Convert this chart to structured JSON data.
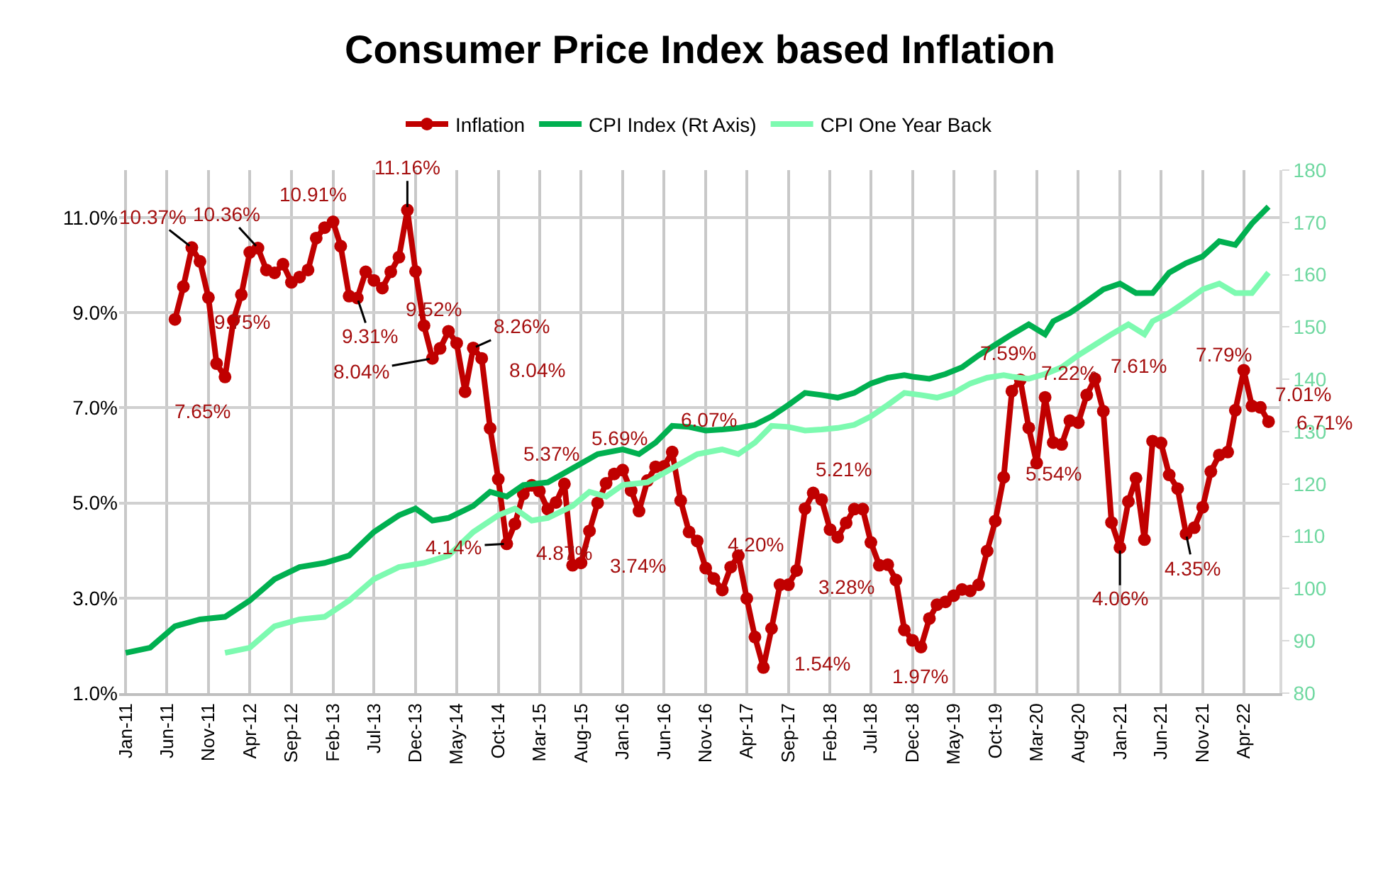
{
  "chart_data": {
    "type": "line",
    "title": "Consumer Price Index based Inflation",
    "xlim": [
      "2010-12-08",
      "2022-08-10"
    ],
    "xticks": [
      {
        "value": "2011-01",
        "label": "Jan-11"
      },
      {
        "value": "2011-06",
        "label": "Jun-11"
      },
      {
        "value": "2011-11",
        "label": "Nov-11"
      },
      {
        "value": "2012-04",
        "label": "Apr-12"
      },
      {
        "value": "2012-09",
        "label": "Sep-12"
      },
      {
        "value": "2013-02",
        "label": "Feb-13"
      },
      {
        "value": "2013-07",
        "label": "Jul-13"
      },
      {
        "value": "2013-12",
        "label": "Dec-13"
      },
      {
        "value": "2014-05",
        "label": "May-14"
      },
      {
        "value": "2014-10",
        "label": "Oct-14"
      },
      {
        "value": "2015-03",
        "label": "Mar-15"
      },
      {
        "value": "2015-08",
        "label": "Aug-15"
      },
      {
        "value": "2016-01",
        "label": "Jan-16"
      },
      {
        "value": "2016-06",
        "label": "Jun-16"
      },
      {
        "value": "2016-11",
        "label": "Nov-16"
      },
      {
        "value": "2017-04",
        "label": "Apr-17"
      },
      {
        "value": "2017-09",
        "label": "Sep-17"
      },
      {
        "value": "2018-02",
        "label": "Feb-18"
      },
      {
        "value": "2018-07",
        "label": "Jul-18"
      },
      {
        "value": "2018-12",
        "label": "Dec-18"
      },
      {
        "value": "2019-05",
        "label": "May-19"
      },
      {
        "value": "2019-10",
        "label": "Oct-19"
      },
      {
        "value": "2020-03",
        "label": "Mar-20"
      },
      {
        "value": "2020-08",
        "label": "Aug-20"
      },
      {
        "value": "2021-01",
        "label": "Jan-21"
      },
      {
        "value": "2021-06",
        "label": "Jun-21"
      },
      {
        "value": "2021-11",
        "label": "Nov-21"
      },
      {
        "value": "2022-04",
        "label": "Apr-22"
      }
    ],
    "ylim": [
      1,
      12
    ],
    "yticks": [
      {
        "value": 1,
        "label": "1.0%"
      },
      {
        "value": 3,
        "label": "3.0%"
      },
      {
        "value": 5,
        "label": "5.0%"
      },
      {
        "value": 7,
        "label": "7.0%"
      },
      {
        "value": 9,
        "label": "9.0%"
      },
      {
        "value": 11,
        "label": "11.0%"
      }
    ],
    "y2lim": [
      80,
      180
    ],
    "y2ticks": [
      80,
      90,
      100,
      110,
      120,
      130,
      140,
      150,
      160,
      170,
      180
    ],
    "grid": true,
    "legend": "top",
    "series": [
      {
        "name": "Inflation",
        "color": "#c00000",
        "marker": "circle",
        "x": [
          "2011-07",
          "2011-08",
          "2011-09",
          "2011-10",
          "2011-11",
          "2011-12",
          "2012-01",
          "2012-02",
          "2012-03",
          "2012-04",
          "2012-05",
          "2012-06",
          "2012-07",
          "2012-08",
          "2012-09",
          "2012-10",
          "2012-11",
          "2012-12",
          "2013-01",
          "2013-02",
          "2013-03",
          "2013-04",
          "2013-05",
          "2013-06",
          "2013-07",
          "2013-08",
          "2013-09",
          "2013-10",
          "2013-11",
          "2013-12",
          "2014-01",
          "2014-02",
          "2014-03",
          "2014-04",
          "2014-05",
          "2014-06",
          "2014-07",
          "2014-08",
          "2014-09",
          "2014-10",
          "2014-11",
          "2014-12",
          "2015-01",
          "2015-02",
          "2015-03",
          "2015-04",
          "2015-05",
          "2015-06",
          "2015-07",
          "2015-08",
          "2015-09",
          "2015-10",
          "2015-11",
          "2015-12",
          "2016-01",
          "2016-02",
          "2016-03",
          "2016-04",
          "2016-05",
          "2016-06",
          "2016-07",
          "2016-08",
          "2016-09",
          "2016-10",
          "2016-11",
          "2016-12",
          "2017-01",
          "2017-02",
          "2017-03",
          "2017-04",
          "2017-05",
          "2017-06",
          "2017-07",
          "2017-08",
          "2017-09",
          "2017-10",
          "2017-11",
          "2017-12",
          "2018-01",
          "2018-02",
          "2018-03",
          "2018-04",
          "2018-05",
          "2018-06",
          "2018-07",
          "2018-08",
          "2018-09",
          "2018-10",
          "2018-11",
          "2018-12",
          "2019-01",
          "2019-02",
          "2019-03",
          "2019-04",
          "2019-05",
          "2019-06",
          "2019-07",
          "2019-08",
          "2019-09",
          "2019-10",
          "2019-11",
          "2019-12",
          "2020-01",
          "2020-02",
          "2020-03",
          "2020-04",
          "2020-05",
          "2020-06",
          "2020-07",
          "2020-08",
          "2020-09",
          "2020-10",
          "2020-11",
          "2020-12",
          "2021-01",
          "2021-02",
          "2021-03",
          "2021-04",
          "2021-05",
          "2021-06",
          "2021-07",
          "2021-08",
          "2021-09",
          "2021-10",
          "2021-11",
          "2021-12",
          "2022-01",
          "2022-02",
          "2022-03",
          "2022-04",
          "2022-05",
          "2022-06",
          "2022-07"
        ],
        "values": [
          8.86,
          9.55,
          10.37,
          10.08,
          9.32,
          7.93,
          7.65,
          8.84,
          9.38,
          10.27,
          10.36,
          9.9,
          9.84,
          10.02,
          9.64,
          9.75,
          9.9,
          10.57,
          10.79,
          10.91,
          10.4,
          9.35,
          9.31,
          9.86,
          9.68,
          9.52,
          9.86,
          10.17,
          11.16,
          9.87,
          8.73,
          8.04,
          8.25,
          8.61,
          8.36,
          7.34,
          8.26,
          8.04,
          6.57,
          5.5,
          4.14,
          4.56,
          5.19,
          5.37,
          5.25,
          4.87,
          5.01,
          5.4,
          3.69,
          3.74,
          4.41,
          5.0,
          5.41,
          5.61,
          5.69,
          5.26,
          4.83,
          5.47,
          5.76,
          5.77,
          6.07,
          5.05,
          4.39,
          4.2,
          3.63,
          3.41,
          3.17,
          3.65,
          3.89,
          2.99,
          2.18,
          1.54,
          2.36,
          3.28,
          3.28,
          3.58,
          4.88,
          5.21,
          5.07,
          4.44,
          4.28,
          4.58,
          4.87,
          4.87,
          4.17,
          3.69,
          3.7,
          3.38,
          2.33,
          2.11,
          1.97,
          2.57,
          2.86,
          2.92,
          3.05,
          3.18,
          3.15,
          3.28,
          3.99,
          4.62,
          5.54,
          7.35,
          7.59,
          6.58,
          5.84,
          7.22,
          6.27,
          6.23,
          6.73,
          6.69,
          7.27,
          7.61,
          6.93,
          4.59,
          4.06,
          5.03,
          5.52,
          4.23,
          6.3,
          6.26,
          5.59,
          5.3,
          4.35,
          4.48,
          4.91,
          5.66,
          6.01,
          6.07,
          6.95,
          7.79,
          7.04,
          7.01,
          6.71
        ]
      },
      {
        "name": "CPI Index (Rt Axis)",
        "color": "#00b050",
        "axis": "y2",
        "x": [
          "2011-01",
          "2011-04",
          "2011-07",
          "2011-10",
          "2012-01",
          "2012-04",
          "2012-07",
          "2012-10",
          "2013-01",
          "2013-04",
          "2013-07",
          "2013-10",
          "2013-12",
          "2014-02",
          "2014-04",
          "2014-07",
          "2014-09",
          "2014-11",
          "2015-01",
          "2015-04",
          "2015-07",
          "2015-10",
          "2016-01",
          "2016-03",
          "2016-05",
          "2016-07",
          "2016-09",
          "2016-11",
          "2017-01",
          "2017-03",
          "2017-05",
          "2017-07",
          "2017-09",
          "2017-11",
          "2018-01",
          "2018-03",
          "2018-05",
          "2018-07",
          "2018-09",
          "2018-11",
          "2018-12",
          "2019-02",
          "2019-04",
          "2019-06",
          "2019-08",
          "2019-10",
          "2019-12",
          "2020-02",
          "2020-04",
          "2020-05",
          "2020-07",
          "2020-09",
          "2020-11",
          "2021-01",
          "2021-03",
          "2021-05",
          "2021-07",
          "2021-09",
          "2021-11",
          "2022-01",
          "2022-03",
          "2022-05",
          "2022-07"
        ],
        "values": [
          87.7,
          88.7,
          92.8,
          94.1,
          94.6,
          97.7,
          101.8,
          104.1,
          104.9,
          106.3,
          110.8,
          114,
          115.3,
          113,
          113.5,
          115.8,
          118.5,
          117.6,
          119.8,
          120.3,
          123,
          125.7,
          126.6,
          125.7,
          127.9,
          131.1,
          130.9,
          130.2,
          130.4,
          130.7,
          131.3,
          132.9,
          135.1,
          137.4,
          137,
          136.5,
          137.4,
          139.2,
          140.3,
          140.8,
          140.5,
          140.1,
          141,
          142.3,
          144.6,
          146.6,
          148.6,
          150.5,
          148.6,
          151.1,
          152.7,
          154.9,
          157.2,
          158.3,
          156.5,
          156.5,
          160.4,
          162.2,
          163.5,
          166.4,
          165.7,
          169.8,
          173
        ]
      },
      {
        "name": "CPI One Year Back",
        "color": "#7dfab0",
        "axis": "y2",
        "x": [
          "2012-01",
          "2012-04",
          "2012-07",
          "2012-10",
          "2013-01",
          "2013-04",
          "2013-07",
          "2013-10",
          "2014-01",
          "2014-04",
          "2014-07",
          "2014-10",
          "2014-12",
          "2015-02",
          "2015-04",
          "2015-07",
          "2015-09",
          "2015-11",
          "2016-01",
          "2016-04",
          "2016-07",
          "2016-10",
          "2017-01",
          "2017-03",
          "2017-05",
          "2017-07",
          "2017-09",
          "2017-11",
          "2018-01",
          "2018-03",
          "2018-05",
          "2018-07",
          "2018-09",
          "2018-11",
          "2019-01",
          "2019-03",
          "2019-05",
          "2019-07",
          "2019-09",
          "2019-11",
          "2019-12",
          "2020-02",
          "2020-04",
          "2020-06",
          "2020-08",
          "2020-10",
          "2020-12",
          "2021-02",
          "2021-04",
          "2021-05",
          "2021-07",
          "2021-09",
          "2021-11",
          "2022-01",
          "2022-03",
          "2022-05",
          "2022-07"
        ],
        "values": [
          87.7,
          88.7,
          92.8,
          94.1,
          94.6,
          97.7,
          101.8,
          104.1,
          104.9,
          106.3,
          110.8,
          114,
          115.3,
          113,
          113.5,
          115.8,
          118.5,
          117.6,
          119.8,
          120.3,
          123,
          125.7,
          126.6,
          125.7,
          127.9,
          131.1,
          130.9,
          130.2,
          130.4,
          130.7,
          131.3,
          132.9,
          135.1,
          137.4,
          137,
          136.5,
          137.4,
          139.2,
          140.3,
          140.8,
          140.5,
          140.1,
          141,
          142.3,
          144.6,
          146.6,
          148.6,
          150.5,
          148.6,
          151.1,
          152.7,
          154.9,
          157.2,
          158.3,
          156.5,
          156.5,
          160.4
        ]
      }
    ],
    "annotations": [
      {
        "text": "10.37%",
        "x": "2011-09",
        "y": 10.37
      },
      {
        "text": "7.65%",
        "x": "2012-01",
        "y": 7.65
      },
      {
        "text": "10.36%",
        "x": "2012-05",
        "y": 10.36
      },
      {
        "text": "9.75%",
        "x": "2012-10",
        "y": 9.75
      },
      {
        "text": "10.91%",
        "x": "2013-02",
        "y": 10.91
      },
      {
        "text": "9.31%",
        "x": "2013-05",
        "y": 9.31
      },
      {
        "text": "11.16%",
        "x": "2013-11",
        "y": 11.16
      },
      {
        "text": "9.52%",
        "x": "2013-08",
        "y": 9.52
      },
      {
        "text": "8.04%",
        "x": "2014-02",
        "y": 8.04
      },
      {
        "text": "8.26%",
        "x": "2014-07",
        "y": 8.26
      },
      {
        "text": "8.04%",
        "x": "2014-08",
        "y": 8.04
      },
      {
        "text": "4.14%",
        "x": "2014-11",
        "y": 4.14
      },
      {
        "text": "4.87%",
        "x": "2015-04",
        "y": 4.87
      },
      {
        "text": "5.37%",
        "x": "2015-02",
        "y": 5.37
      },
      {
        "text": "3.74%",
        "x": "2015-08",
        "y": 3.74
      },
      {
        "text": "5.69%",
        "x": "2016-01",
        "y": 5.69
      },
      {
        "text": "6.07%",
        "x": "2016-07",
        "y": 6.07
      },
      {
        "text": "4.20%",
        "x": "2016-10",
        "y": 4.2
      },
      {
        "text": "1.54%",
        "x": "2017-06",
        "y": 1.54
      },
      {
        "text": "3.28%",
        "x": "2017-09",
        "y": 3.28
      },
      {
        "text": "5.21%",
        "x": "2017-12",
        "y": 5.21
      },
      {
        "text": "1.97%",
        "x": "2019-01",
        "y": 1.97
      },
      {
        "text": "7.59%",
        "x": "2020-01",
        "y": 7.59
      },
      {
        "text": "5.54%",
        "x": "2019-11",
        "y": 5.54
      },
      {
        "text": "7.22%",
        "x": "2020-04",
        "y": 7.22
      },
      {
        "text": "7.61%",
        "x": "2020-10",
        "y": 7.61
      },
      {
        "text": "4.06%",
        "x": "2021-01",
        "y": 4.06
      },
      {
        "text": "4.35%",
        "x": "2021-09",
        "y": 4.35
      },
      {
        "text": "7.79%",
        "x": "2022-04",
        "y": 7.79
      },
      {
        "text": "7.01%",
        "x": "2022-06",
        "y": 7.01
      },
      {
        "text": "6.71%",
        "x": "2022-07",
        "y": 6.71
      }
    ]
  }
}
